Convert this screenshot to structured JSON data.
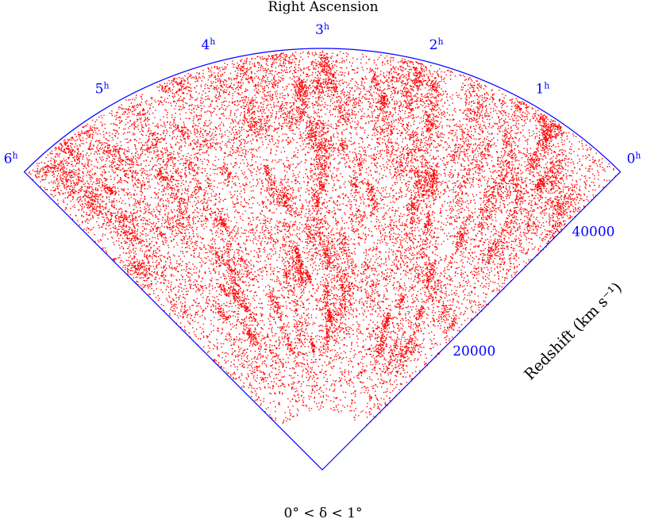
{
  "chart_data": {
    "type": "scatter",
    "title": "Right Ascension",
    "subtitle": "0° < δ < 1°",
    "ra_ticks": [
      {
        "hours": 0,
        "label": "0h"
      },
      {
        "hours": 1,
        "label": "1h"
      },
      {
        "hours": 2,
        "label": "2h"
      },
      {
        "hours": 3,
        "label": "3h"
      },
      {
        "hours": 4,
        "label": "4h"
      },
      {
        "hours": 5,
        "label": "5h"
      },
      {
        "hours": 6,
        "label": "6h"
      }
    ],
    "ra_range_hours": [
      0,
      6
    ],
    "redshift_ticks": [
      {
        "value": 20000,
        "label": "20000"
      },
      {
        "value": 40000,
        "label": "40000"
      }
    ],
    "redshift_range": [
      0,
      50000
    ],
    "ylabel": "Redshift (km s⁻¹)",
    "points_per_cloud": 22000,
    "colors": {
      "points": "#ff0000",
      "frame": "#0000ff",
      "tick_labels": "#0000ff",
      "text": "#000000"
    }
  }
}
